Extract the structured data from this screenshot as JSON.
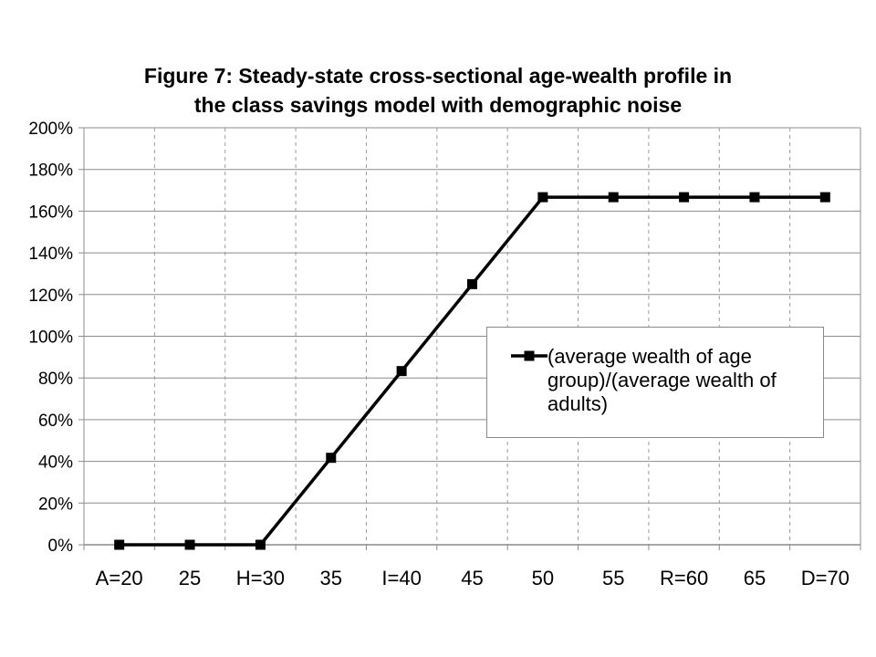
{
  "chart_data": {
    "type": "line",
    "title": "Figure 7: Steady-state cross-sectional age-wealth profile in the class savings model with demographic noise",
    "title_lines": [
      "Figure 7: Steady-state cross-sectional age-wealth profile in",
      "the class savings model with demographic noise"
    ],
    "categories": [
      "A=20",
      "25",
      "H=30",
      "35",
      "I=40",
      "45",
      "50",
      "55",
      "R=60",
      "65",
      "D=70"
    ],
    "series": [
      {
        "name": "(average wealth of age group)/(average wealth of adults)",
        "name_lines": [
          "(average wealth of age",
          "group)/(average wealth of",
          "adults)"
        ],
        "values": [
          0,
          0,
          0,
          41.7,
          83.3,
          125,
          166.7,
          166.7,
          166.7,
          166.7,
          166.7
        ],
        "color": "#000000"
      }
    ],
    "yticks": [
      "0%",
      "20%",
      "40%",
      "60%",
      "80%",
      "100%",
      "120%",
      "140%",
      "160%",
      "180%",
      "200%"
    ],
    "ylim": [
      0,
      200
    ],
    "xlabel": "",
    "ylabel": "",
    "grid": {
      "horizontal": "solid",
      "vertical": "dashed"
    },
    "legend_position": "right"
  }
}
